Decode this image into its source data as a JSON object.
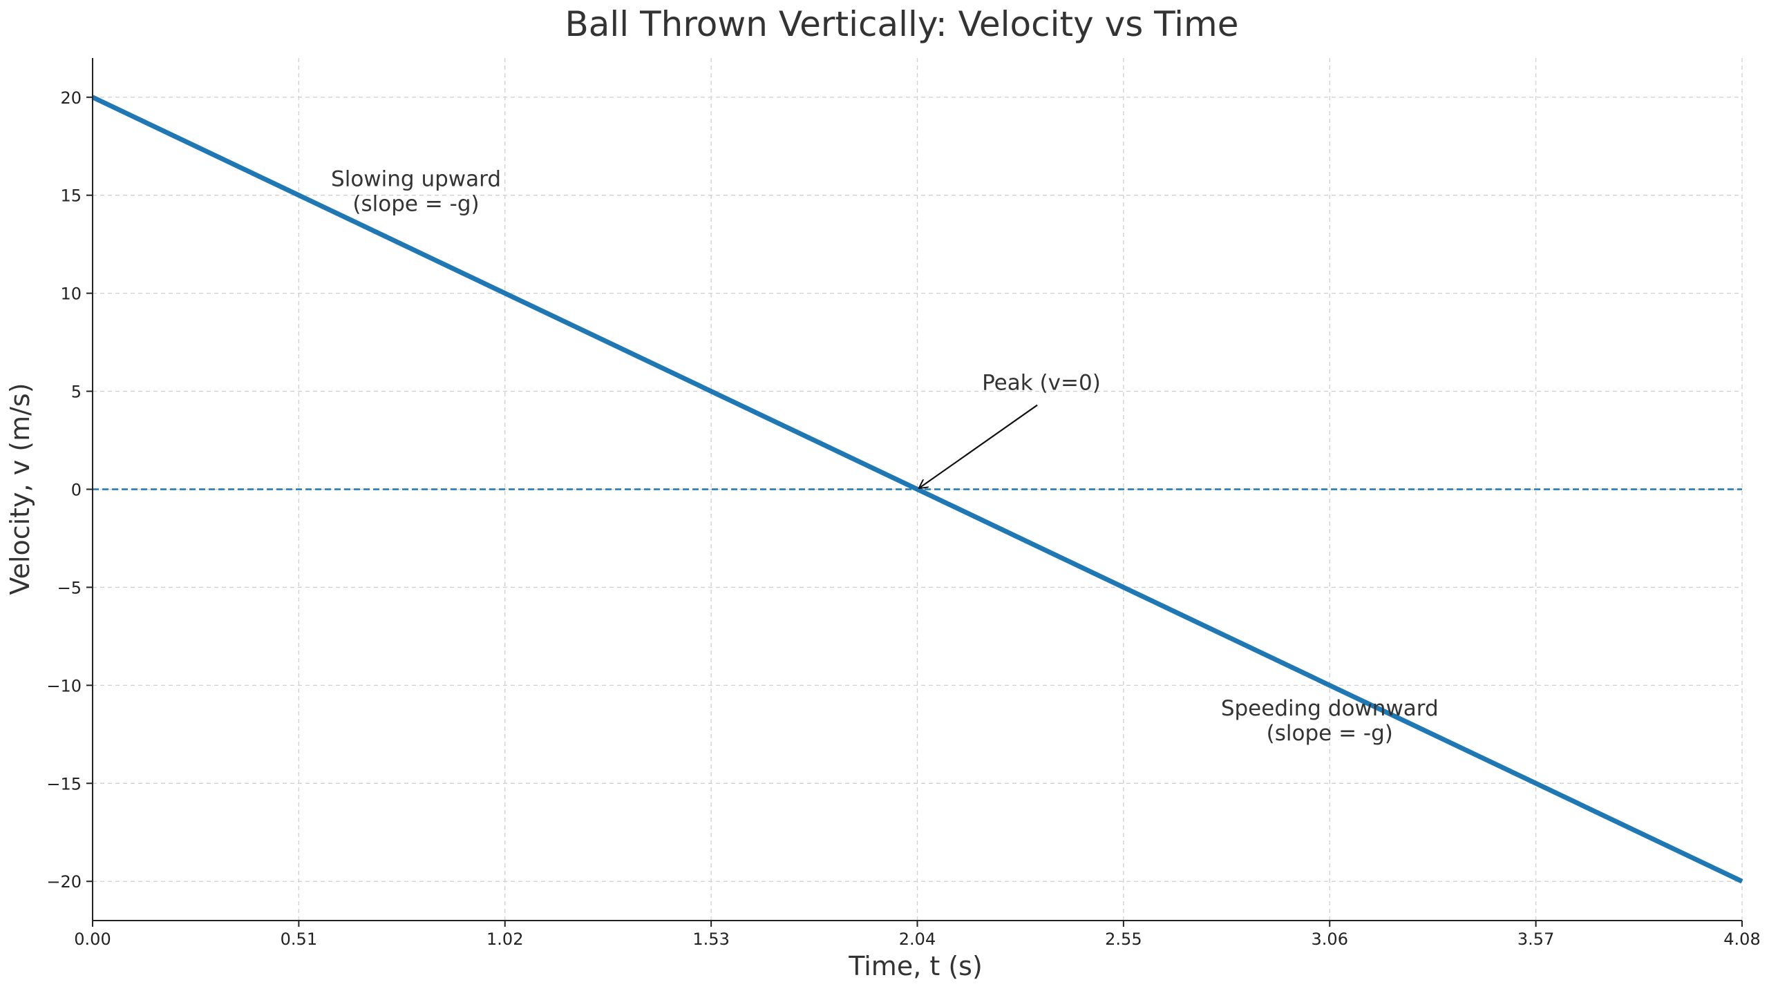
{
  "chart_data": {
    "type": "line",
    "title": "Ball Thrown Vertically: Velocity vs Time",
    "xlabel": "Time, t (s)",
    "ylabel": "Velocity, v (m/s)",
    "xlim": [
      0,
      4.08
    ],
    "ylim": [
      -22,
      22
    ],
    "grid": true,
    "x_ticks": [
      0,
      0.51,
      1.02,
      1.53,
      2.04,
      2.55,
      3.06,
      3.57,
      4.08
    ],
    "x_tick_labels": [
      "0.00",
      "0.51",
      "1.02",
      "1.53",
      "2.04",
      "2.55",
      "3.06",
      "3.57",
      "4.08"
    ],
    "y_ticks": [
      20,
      15,
      10,
      5,
      0,
      -5,
      -10,
      -15,
      -20
    ],
    "y_tick_labels": [
      "20",
      "15",
      "10",
      "5",
      "0",
      "−5",
      "−10",
      "−15",
      "−20"
    ],
    "series": [
      {
        "color": "#1f77b4",
        "x": [
          0,
          4.08
        ],
        "y": [
          20,
          -20
        ]
      }
    ],
    "reference_line": {
      "y": 0,
      "style": "dashed",
      "color": "#1f77b4"
    },
    "annotations": [
      {
        "lines": [
          "Slowing upward",
          "(slope = -g)"
        ],
        "x": 0.8,
        "y": 15
      },
      {
        "lines": [
          "Speeding downward",
          "(slope = -g)"
        ],
        "x": 3.06,
        "y": -12
      },
      {
        "lines": [
          "Peak (v=0)"
        ],
        "x": 2.2,
        "y": 5,
        "arrow_to": {
          "x": 2.04,
          "y": 0
        }
      }
    ]
  }
}
